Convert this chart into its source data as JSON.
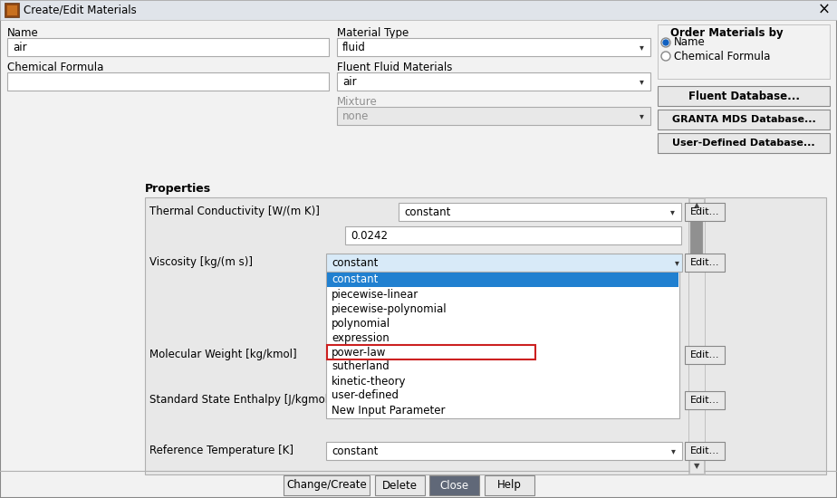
{
  "title": "Create/Edit Materials",
  "bg_color": "#f2f2f2",
  "white": "#ffffff",
  "light_gray": "#e8e8e8",
  "mid_gray": "#d4d4d4",
  "border_color": "#b0b0b0",
  "dark_border": "#888888",
  "blue_highlight": "#2080d0",
  "red_border": "#cc2020",
  "button_bg": "#e8e8e8",
  "close_button_bg": "#606878",
  "text_color": "#000000",
  "white_text": "#ffffff",
  "gray_text": "#909090",
  "field_border": "#aaaaaa",
  "title_bar_bg": "#e0e4ea",
  "props_bg": "#e8e8e8",
  "scrollbar_dark": "#909090",
  "dropdown_items": [
    "constant",
    "piecewise-linear",
    "piecewise-polynomial",
    "polynomial",
    "expression",
    "power-law",
    "sutherland",
    "kinetic-theory",
    "user-defined",
    "New Input Parameter"
  ],
  "highlighted_item": "constant",
  "red_outlined_item": "power-law",
  "name_value": "air",
  "material_type": "fluid",
  "fluent_fluid": "air",
  "mixture": "none",
  "thermal_cond_method": "constant",
  "thermal_cond_value": "0.0242",
  "viscosity_method": "constant",
  "ref_temp_method": "constant",
  "figsize": [
    9.24,
    5.5
  ],
  "dpi": 100
}
